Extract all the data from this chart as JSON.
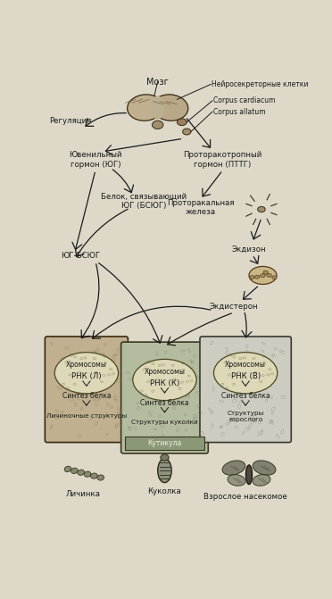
{
  "bg_color": "#ddd8c8",
  "text_color": "#1a1a1a",
  "labels": {
    "brain": "Мозг",
    "neurosecretory": "Нейросекреторные клетки",
    "corpus_cardiacum": "Corpus cardiacum",
    "corpus_allatum": "Corpus allatum",
    "regulation": "Регуляция",
    "juvenile_hormone": "Ювенильный\nгормон (ЮГ)",
    "ptth": "Проторакотропный\nгормон (ПТТГ)",
    "jh_binding": "Белок, связывающий\nЮГ (БСЮГ)",
    "prothoracic_gland": "Проторакальная\nжелеза",
    "jh_bsjug": "ЮГ-БСЮГ",
    "ecdysone": "Экдизон",
    "ecdysterone": "Экдистерон",
    "chromosomes": "Хромосомы",
    "rna_l": "РНК (Л)",
    "rna_k": "РНК (К)",
    "rna_v": "РНК (В)",
    "protein_synthesis": "Синтез белка",
    "larval_structures": "Личиночные структуры",
    "pupal_structures": "Структуры куколки",
    "adult_structures": "Структуры\nвзрослого",
    "cuticle": "Кутикула",
    "larva": "Личинка",
    "pupa": "Куколка",
    "adult": "Взрослое насекомое"
  }
}
